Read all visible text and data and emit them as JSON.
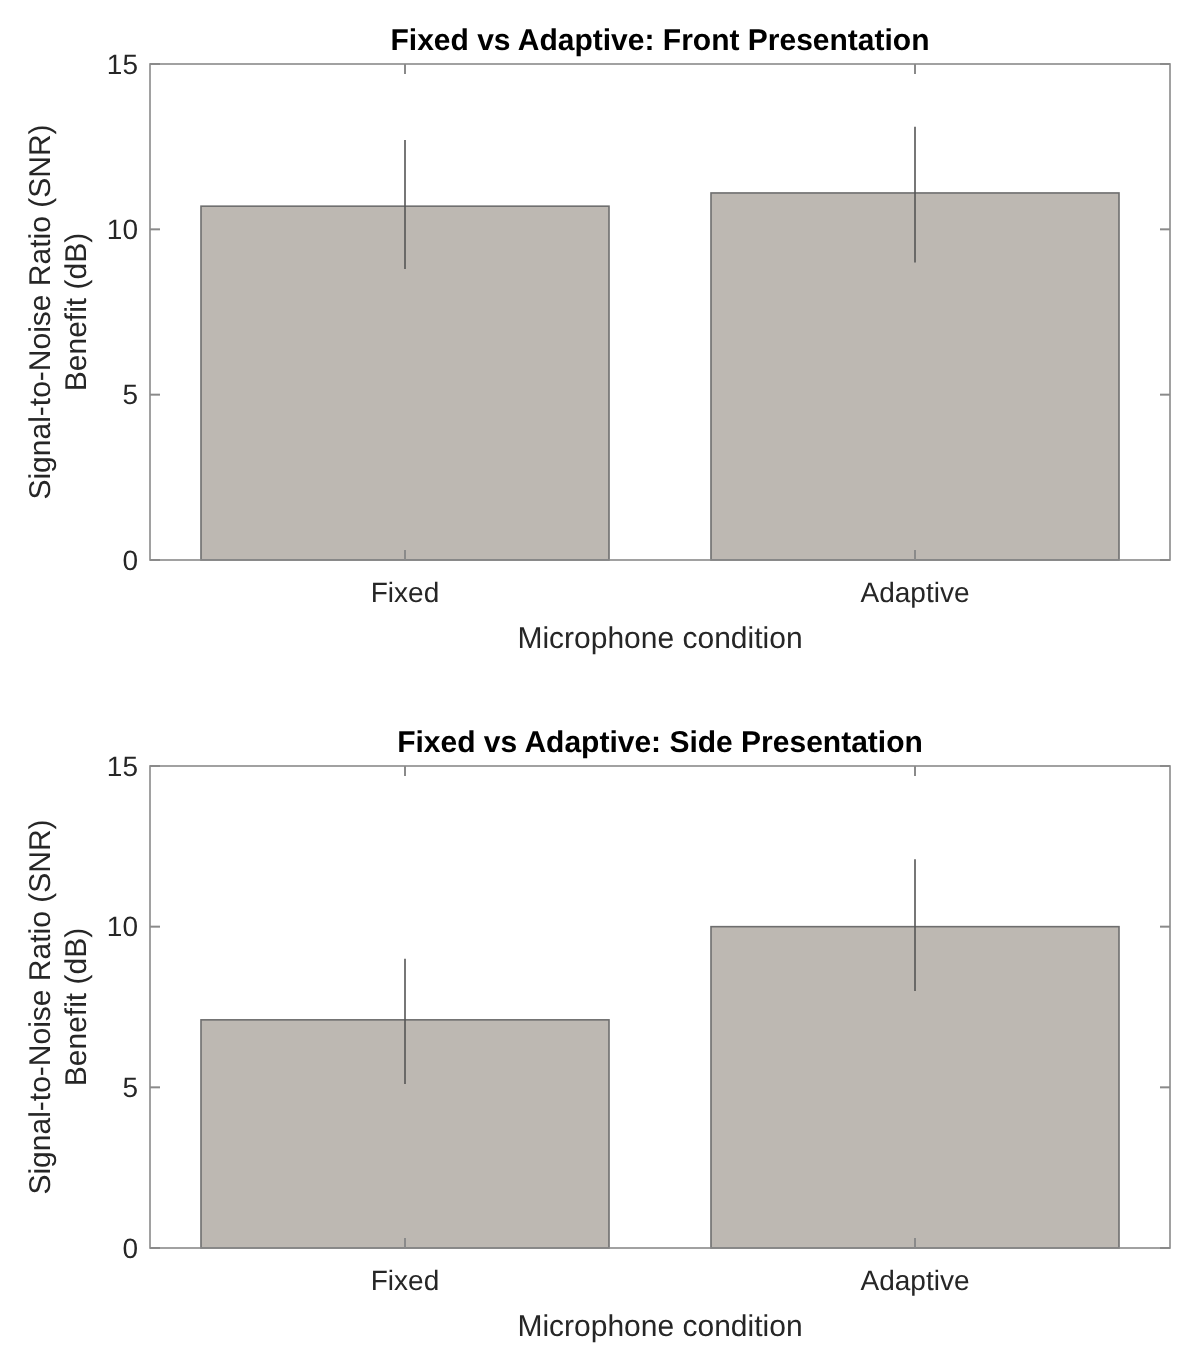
{
  "chart_data": [
    {
      "type": "bar",
      "title": "Fixed vs Adaptive: Front Presentation",
      "xlabel": "Microphone condition",
      "ylabel": "Signal-to-Noise Ratio (SNR)\nBenefit (dB)",
      "categories": [
        "Fixed",
        "Adaptive"
      ],
      "values": [
        10.7,
        11.1
      ],
      "errors": [
        [
          8.8,
          12.7
        ],
        [
          9.0,
          13.1
        ]
      ],
      "color": "#bdb8b2",
      "ylim": [
        0,
        15
      ],
      "yticks": [
        0,
        5,
        10,
        15
      ],
      "grid": false
    },
    {
      "type": "bar",
      "title": "Fixed vs Adaptive: Side Presentation",
      "xlabel": "Microphone condition",
      "ylabel": "Signal-to-Noise Ratio (SNR)\nBenefit (dB)",
      "categories": [
        "Fixed",
        "Adaptive"
      ],
      "values": [
        7.1,
        10.0
      ],
      "errors": [
        [
          5.1,
          9.0
        ],
        [
          8.0,
          12.1
        ]
      ],
      "color": "#bdb8b2",
      "ylim": [
        0,
        15
      ],
      "yticks": [
        0,
        5,
        10,
        15
      ],
      "grid": false
    }
  ]
}
